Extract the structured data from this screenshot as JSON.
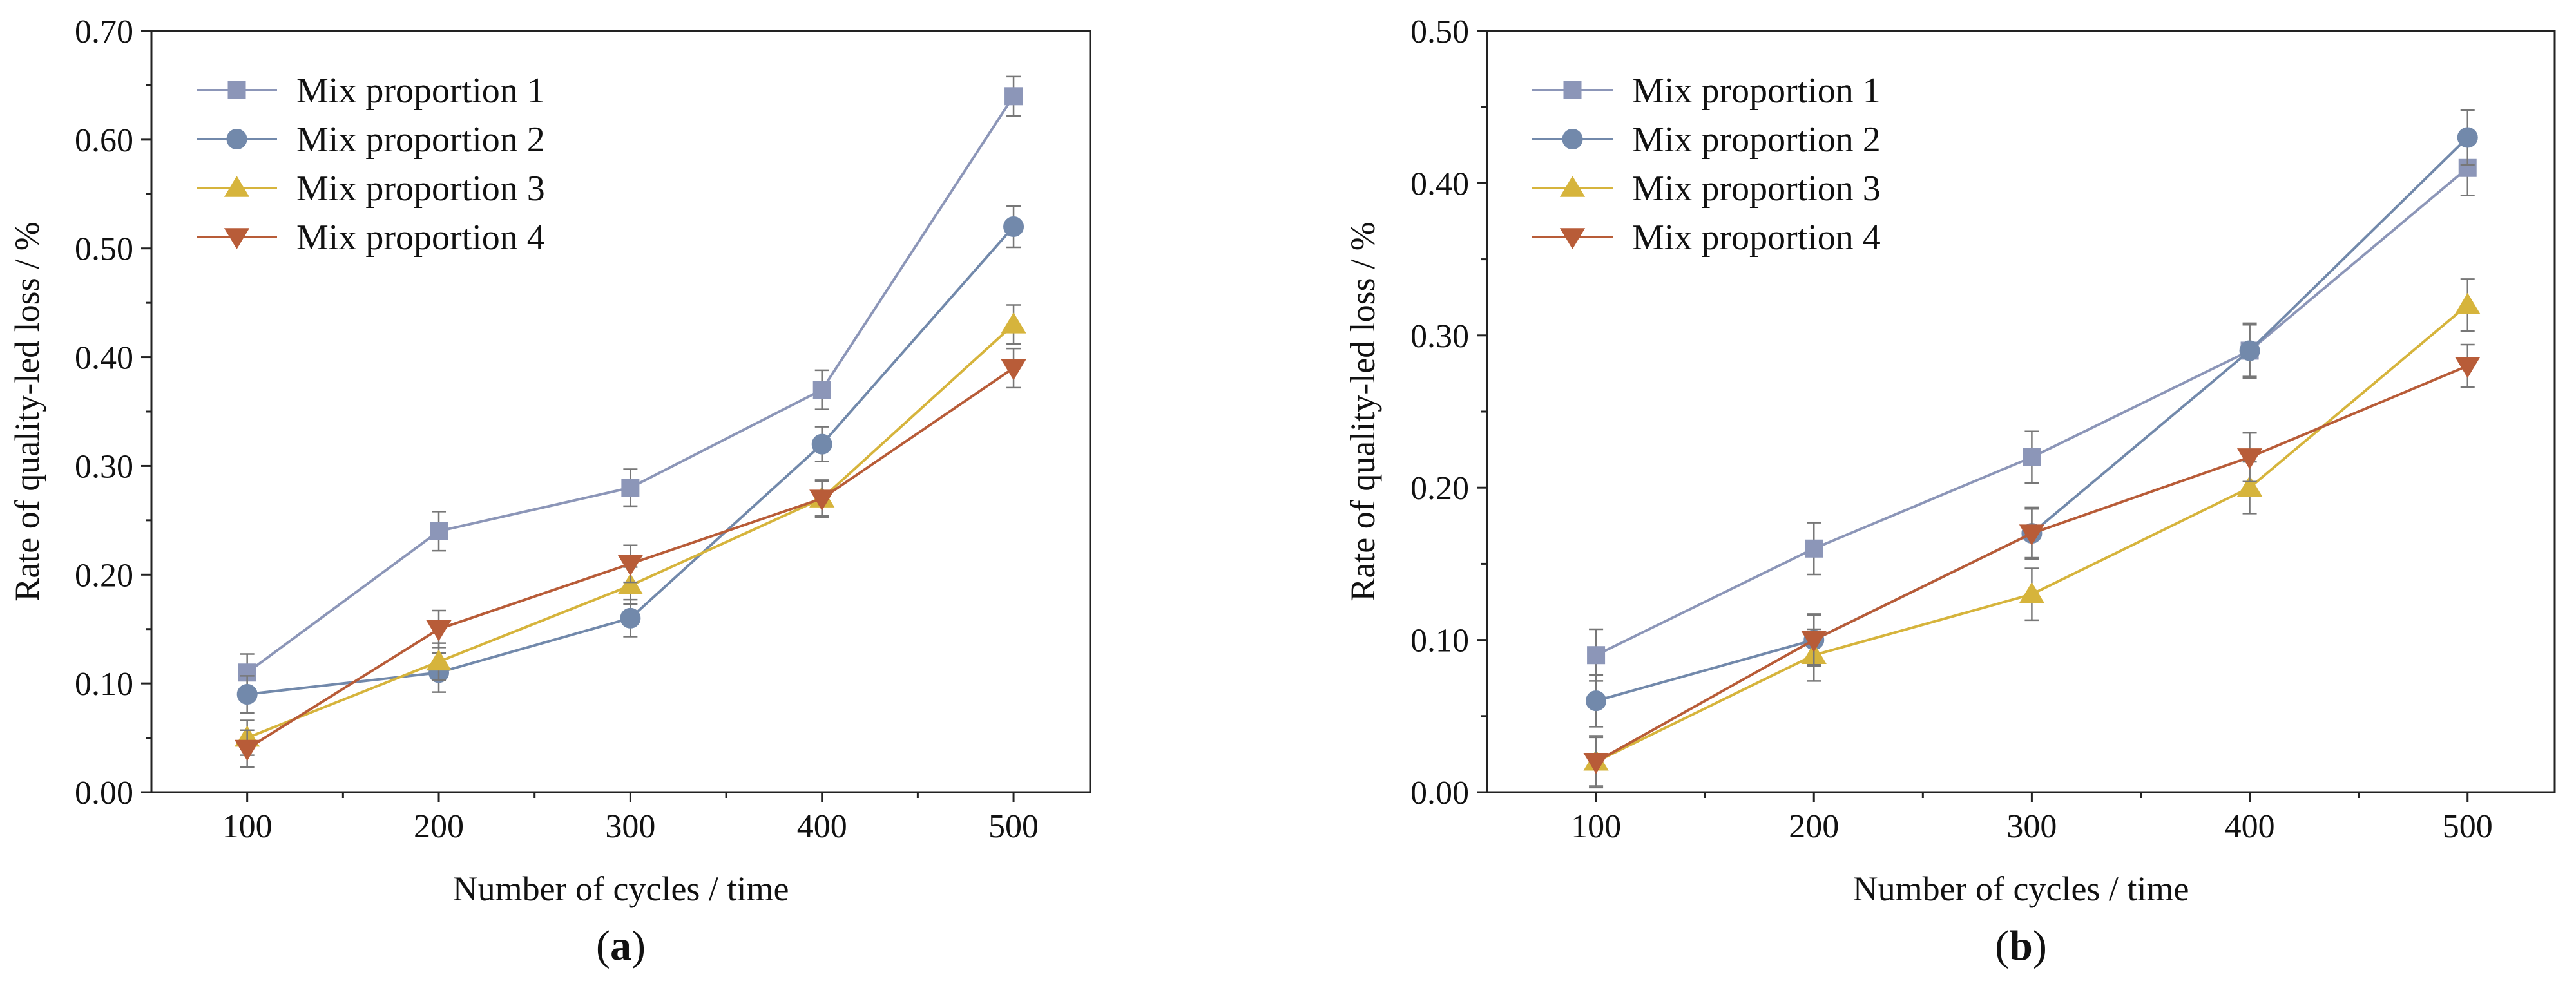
{
  "chart_data": [
    {
      "type": "line",
      "panel_label": "(a)",
      "panel_letter": "a",
      "xlabel": "Number of cycles / time",
      "ylabel": "Rate of quality-led loss / %",
      "x": [
        100,
        200,
        300,
        400,
        500
      ],
      "xlim": [
        50,
        540
      ],
      "ylim": [
        0,
        0.7
      ],
      "xticks": [
        100,
        200,
        300,
        400,
        500
      ],
      "yticks": [
        0,
        0.1,
        0.2,
        0.3,
        0.4,
        0.5,
        0.6,
        0.7
      ],
      "ytick_labels": [
        "0.00",
        "0.10",
        "0.20",
        "0.30",
        "0.40",
        "0.50",
        "0.60",
        "0.70"
      ],
      "legend_position": "top-left",
      "series": [
        {
          "name": "Mix proportion 1",
          "marker": "square",
          "color": "#8c96b8",
          "values": [
            0.11,
            0.24,
            0.28,
            0.37,
            0.64
          ],
          "errors": [
            0.017,
            0.018,
            0.017,
            0.018,
            0.018
          ]
        },
        {
          "name": "Mix proportion 2",
          "marker": "circle",
          "color": "#7289ab",
          "values": [
            0.09,
            0.11,
            0.16,
            0.32,
            0.52
          ],
          "errors": [
            0.017,
            0.018,
            0.017,
            0.016,
            0.019
          ]
        },
        {
          "name": "Mix proportion 3",
          "marker": "triangle-up",
          "color": "#d6b43c",
          "values": [
            0.05,
            0.12,
            0.19,
            0.27,
            0.43
          ],
          "errors": [
            0.016,
            0.017,
            0.017,
            0.016,
            0.018
          ]
        },
        {
          "name": "Mix proportion 4",
          "marker": "triangle-down",
          "color": "#b85c38",
          "values": [
            0.04,
            0.15,
            0.21,
            0.27,
            0.39
          ],
          "errors": [
            0.017,
            0.017,
            0.017,
            0.017,
            0.018
          ]
        }
      ]
    },
    {
      "type": "line",
      "panel_label": "(b)",
      "panel_letter": "b",
      "xlabel": "Number of cycles / time",
      "ylabel": "Rate of quality-led loss / %",
      "x": [
        100,
        200,
        300,
        400,
        500
      ],
      "xlim": [
        50,
        540
      ],
      "ylim": [
        0,
        0.5
      ],
      "xticks": [
        100,
        200,
        300,
        400,
        500
      ],
      "yticks": [
        0,
        0.1,
        0.2,
        0.3,
        0.4,
        0.5
      ],
      "ytick_labels": [
        "0.00",
        "0.10",
        "0.20",
        "0.30",
        "0.40",
        "0.50"
      ],
      "legend_position": "top-left",
      "series": [
        {
          "name": "Mix proportion 1",
          "marker": "square",
          "color": "#8c96b8",
          "values": [
            0.09,
            0.16,
            0.22,
            0.29,
            0.41
          ],
          "errors": [
            0.017,
            0.017,
            0.017,
            0.018,
            0.018
          ]
        },
        {
          "name": "Mix proportion 2",
          "marker": "circle",
          "color": "#7289ab",
          "values": [
            0.06,
            0.1,
            0.17,
            0.29,
            0.43
          ],
          "errors": [
            0.017,
            0.016,
            0.017,
            0.017,
            0.018
          ]
        },
        {
          "name": "Mix proportion 3",
          "marker": "triangle-up",
          "color": "#d6b43c",
          "values": [
            0.02,
            0.09,
            0.13,
            0.2,
            0.32
          ],
          "errors": [
            0.016,
            0.017,
            0.017,
            0.017,
            0.017
          ]
        },
        {
          "name": "Mix proportion 4",
          "marker": "triangle-down",
          "color": "#b85c38",
          "values": [
            0.02,
            0.1,
            0.17,
            0.22,
            0.28
          ],
          "errors": [
            0.017,
            0.017,
            0.016,
            0.016,
            0.014
          ]
        }
      ]
    }
  ]
}
